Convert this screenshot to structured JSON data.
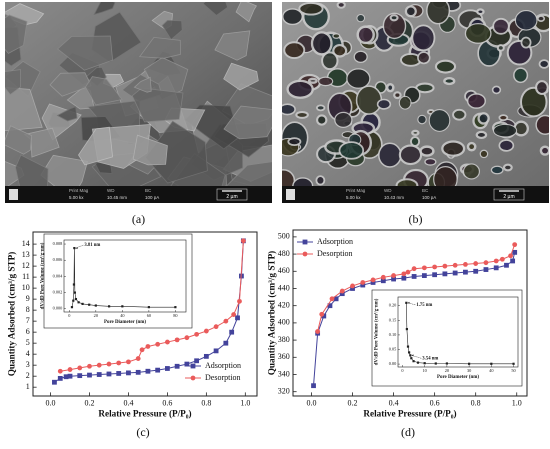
{
  "images": [
    {
      "label": "(a)",
      "bar": [
        [
          "Print Mag",
          "5.00 kx"
        ],
        [
          "WD",
          "10.45 mm"
        ],
        [
          "BC",
          "100 pA"
        ]
      ],
      "scale": "2 µm",
      "style": "flakes"
    },
    {
      "label": "(b)",
      "bar": [
        [
          "Print Mag",
          "5.00 kx"
        ],
        [
          "WD",
          "10.43 mm"
        ],
        [
          "BC",
          "100 pA"
        ]
      ],
      "scale": "2 µm",
      "style": "porous"
    }
  ],
  "chart_data": [
    {
      "type": "line",
      "label": "(c)",
      "xlabel": "Relative Pressure (P/P₀)",
      "ylabel": "Quantity Adsorbed (cm³/g STP)",
      "xlim": [
        -0.09,
        1.06
      ],
      "ylim": [
        0.2,
        15.1
      ],
      "xticks": [
        {
          "value": 0,
          "label": "0.0"
        },
        {
          "value": 0.2,
          "label": "0.2"
        },
        {
          "value": 0.4,
          "label": "0.4"
        },
        {
          "value": 0.6,
          "label": "0.6"
        },
        {
          "value": 0.8,
          "label": "0.8"
        },
        {
          "value": 1,
          "label": "1.0"
        }
      ],
      "yticks": [
        1,
        2,
        3,
        4,
        5,
        6,
        7,
        8,
        9,
        10,
        11,
        12,
        13,
        14
      ],
      "legend": "lower right",
      "series": [
        {
          "name": "Adsorption",
          "color": "#43439b",
          "marker": "square",
          "x": [
            0.02,
            0.05,
            0.08,
            0.1,
            0.15,
            0.2,
            0.25,
            0.3,
            0.35,
            0.4,
            0.45,
            0.5,
            0.55,
            0.6,
            0.65,
            0.7,
            0.75,
            0.8,
            0.85,
            0.9,
            0.93,
            0.96,
            0.98,
            0.99
          ],
          "values": [
            1.45,
            1.8,
            1.95,
            2.0,
            2.05,
            2.1,
            2.15,
            2.2,
            2.25,
            2.3,
            2.35,
            2.45,
            2.55,
            2.7,
            2.9,
            3.1,
            3.4,
            3.8,
            4.3,
            5.0,
            6.0,
            7.3,
            11.1,
            14.3
          ]
        },
        {
          "name": "Desorption",
          "color": "#ea5b5b",
          "marker": "circle",
          "x": [
            0.99,
            0.97,
            0.94,
            0.9,
            0.85,
            0.8,
            0.75,
            0.7,
            0.65,
            0.6,
            0.55,
            0.5,
            0.47,
            0.45,
            0.4,
            0.35,
            0.3,
            0.25,
            0.2,
            0.15,
            0.1,
            0.05
          ],
          "values": [
            14.3,
            8.8,
            7.6,
            7.0,
            6.5,
            6.1,
            5.8,
            5.5,
            5.3,
            5.1,
            4.9,
            4.7,
            4.4,
            3.6,
            3.3,
            3.2,
            3.1,
            3.0,
            2.9,
            2.75,
            2.6,
            2.45
          ]
        }
      ]
    },
    {
      "type": "line",
      "xlabel": "Pore Diameter (nm)",
      "ylabel": "dV/dD Pore Volume (cm³/g·nm)",
      "xlim": [
        -4,
        88
      ],
      "ylim": [
        -0.0004,
        0.0085
      ],
      "xticks": [
        0,
        20,
        40,
        60,
        80
      ],
      "yticks": [
        {
          "value": 0,
          "label": "0.000"
        },
        {
          "value": 0.002,
          "label": "0.002"
        },
        {
          "value": 0.004,
          "label": "0.004"
        },
        {
          "value": 0.006,
          "label": "0.006"
        },
        {
          "value": 0.008,
          "label": "0.008"
        }
      ],
      "annotations": [
        "3.81 nm"
      ],
      "series": [
        {
          "color": "#222222",
          "marker": "square",
          "x": [
            2,
            3,
            3.5,
            3.81,
            4.2,
            5,
            7,
            10,
            15,
            20,
            30,
            40,
            60,
            80
          ],
          "values": [
            0.0002,
            0.001,
            0.003,
            0.0075,
            0.002,
            0.0012,
            0.0008,
            0.0006,
            0.0005,
            0.0004,
            0.0003,
            0.0003,
            0.0002,
            0.0002
          ]
        }
      ]
    },
    {
      "type": "line",
      "label": "(d)",
      "xlabel": "Relative Pressure (P/P₀)",
      "ylabel": "Quantity Adsorbed (cm³/g STP)",
      "xlim": [
        -0.09,
        1.05
      ],
      "ylim": [
        315,
        508
      ],
      "xticks": [
        {
          "value": 0,
          "label": "0.0"
        },
        {
          "value": 0.2,
          "label": "0.2"
        },
        {
          "value": 0.4,
          "label": "0.4"
        },
        {
          "value": 0.6,
          "label": "0.6"
        },
        {
          "value": 0.8,
          "label": "0.8"
        },
        {
          "value": 1,
          "label": "1.0"
        }
      ],
      "yticks": [
        320,
        340,
        360,
        380,
        400,
        420,
        440,
        460,
        480,
        500
      ],
      "legend": "upper left",
      "series": [
        {
          "name": "Adsorption",
          "color": "#43439b",
          "marker": "square",
          "x": [
            0.01,
            0.03,
            0.06,
            0.09,
            0.12,
            0.15,
            0.2,
            0.25,
            0.3,
            0.35,
            0.4,
            0.45,
            0.5,
            0.55,
            0.6,
            0.65,
            0.7,
            0.75,
            0.8,
            0.85,
            0.9,
            0.95,
            0.98,
            0.99
          ],
          "values": [
            327,
            388,
            408,
            420,
            428,
            434,
            440,
            444,
            447,
            449,
            451,
            452,
            454,
            455,
            456,
            457,
            458,
            459,
            460,
            462,
            464,
            467,
            472,
            482
          ]
        },
        {
          "name": "Desorption",
          "color": "#ea5b5b",
          "marker": "circle",
          "x": [
            0.99,
            0.97,
            0.93,
            0.9,
            0.85,
            0.8,
            0.75,
            0.7,
            0.65,
            0.6,
            0.55,
            0.5,
            0.47,
            0.45,
            0.4,
            0.35,
            0.3,
            0.25,
            0.2,
            0.15,
            0.1,
            0.05,
            0.03
          ],
          "values": [
            491,
            478,
            474,
            472,
            470,
            469,
            468,
            467,
            466,
            465,
            464,
            463,
            459,
            457,
            455,
            453,
            450,
            447,
            443,
            437,
            428,
            410,
            390
          ]
        }
      ]
    },
    {
      "type": "line",
      "xlabel": "Pore Diameter (nm)",
      "ylabel": "dV/dD Pore Volume (cm³/g·nm)",
      "xlim": [
        -2,
        52
      ],
      "ylim": [
        -0.01,
        0.23
      ],
      "xticks": [
        0,
        10,
        20,
        30,
        40,
        50
      ],
      "yticks": [
        {
          "value": 0,
          "label": "0.00"
        },
        {
          "value": 0.05,
          "label": "0.05"
        },
        {
          "value": 0.1,
          "label": "0.10"
        },
        {
          "value": 0.15,
          "label": "0.15"
        },
        {
          "value": 0.2,
          "label": "0.20"
        }
      ],
      "annotations": [
        "1.75 nm",
        "3.54 nm"
      ],
      "series": [
        {
          "color": "#222222",
          "marker": "square",
          "x": [
            1.75,
            2,
            2.5,
            3,
            3.54,
            4,
            5,
            7,
            10,
            15,
            20,
            30,
            40,
            50
          ],
          "values": [
            0.21,
            0.12,
            0.06,
            0.04,
            0.03,
            0.02,
            0.01,
            0.005,
            0.003,
            0.002,
            0.002,
            0.001,
            0.001,
            0.001
          ]
        }
      ]
    }
  ]
}
